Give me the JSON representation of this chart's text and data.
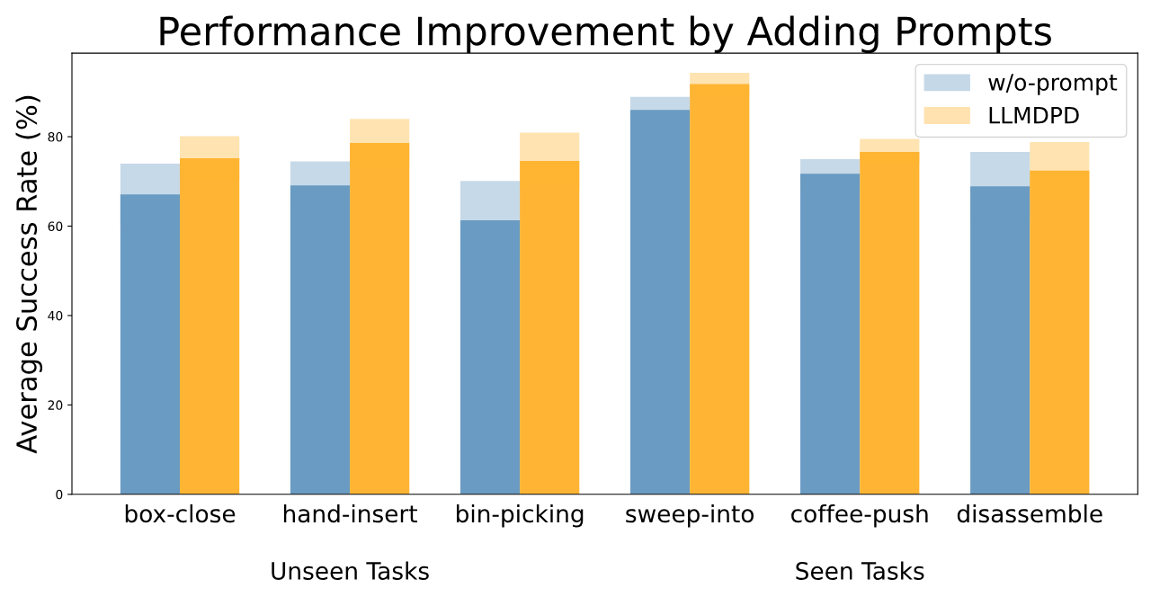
{
  "chart_data": {
    "type": "bar",
    "title": "Performance Improvement by Adding Prompts",
    "ylabel": "Average Success Rate (%)",
    "categories": [
      "box-close",
      "hand-insert",
      "bin-picking",
      "sweep-into",
      "coffee-push",
      "disassemble"
    ],
    "series": [
      {
        "name": "w/o-prompt",
        "color": "#6a9bc3",
        "values": [
          67.1,
          69.1,
          61.3,
          86.0,
          71.7,
          68.9
        ],
        "errors": [
          6.9,
          5.4,
          8.8,
          2.9,
          3.3,
          7.7
        ]
      },
      {
        "name": "LLMDPD",
        "color": "#ffb533",
        "values": [
          75.2,
          78.6,
          74.6,
          91.8,
          76.6,
          72.4
        ],
        "errors": [
          4.9,
          5.4,
          6.3,
          2.5,
          2.9,
          6.4
        ]
      }
    ],
    "ylim": [
      0,
      98.7
    ],
    "yticks": [
      0,
      20,
      40,
      60,
      80
    ],
    "legend": "top right",
    "grid": false,
    "annotations": [
      "Unseen Tasks",
      "Seen Tasks"
    ]
  }
}
